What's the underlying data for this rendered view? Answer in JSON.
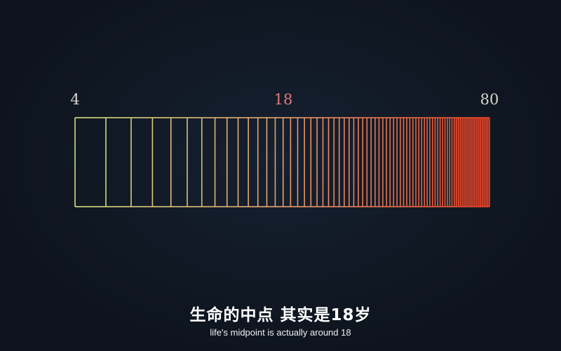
{
  "chart_data": {
    "type": "diagram",
    "scale": "log",
    "start_age": 4,
    "end_age": 80,
    "step": 1,
    "labels": {
      "start": "4",
      "mid": "18",
      "end": "80"
    },
    "colors": {
      "start": "#d4e07c",
      "end": "#ea4428",
      "mid_label": "#e07a7a",
      "background": "#0e1520"
    }
  },
  "subtitles": {
    "chinese": "生命的中点 其实是18岁",
    "english": "life's midpoint is actually around 18"
  }
}
